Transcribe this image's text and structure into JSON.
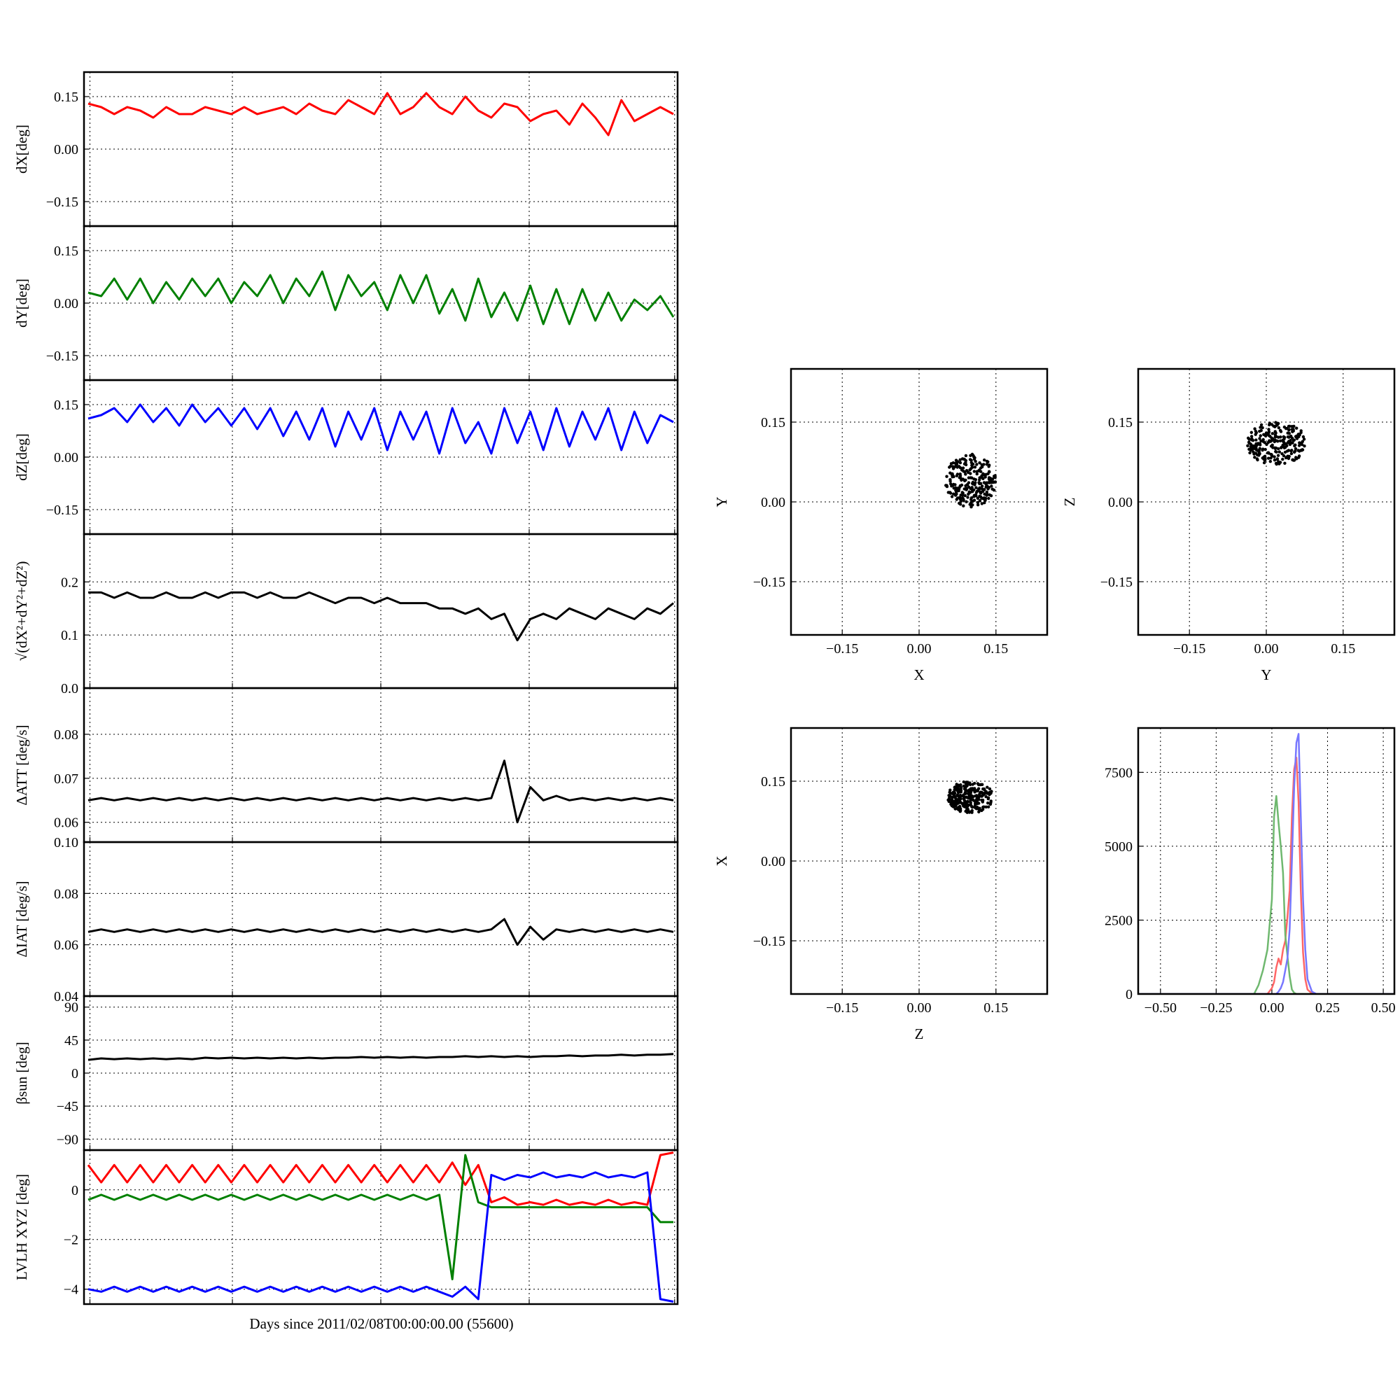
{
  "figure": {
    "xlabel": "Days since 2011/02/08T00:00:00.00 (55600)"
  },
  "chart_data": [
    {
      "id": "dX",
      "type": "line",
      "ylabel": "dX[deg]",
      "ylim": [
        -0.22,
        0.22
      ],
      "yticks": [
        "0.15",
        "0.00",
        "−0.15"
      ],
      "ytick_values": [
        0.15,
        0.0,
        -0.15
      ],
      "grid": true,
      "color": "#ff0000",
      "series": [
        {
          "values": [
            0.13,
            0.12,
            0.1,
            0.12,
            0.11,
            0.09,
            0.12,
            0.1,
            0.1,
            0.12,
            0.11,
            0.1,
            0.12,
            0.1,
            0.11,
            0.12,
            0.1,
            0.13,
            0.11,
            0.1,
            0.14,
            0.12,
            0.1,
            0.16,
            0.1,
            0.12,
            0.16,
            0.12,
            0.1,
            0.15,
            0.11,
            0.09,
            0.13,
            0.12,
            0.08,
            0.1,
            0.11,
            0.07,
            0.13,
            0.09,
            0.04,
            0.14,
            0.08,
            0.1,
            0.12,
            0.1
          ]
        }
      ]
    },
    {
      "id": "dY",
      "type": "line",
      "ylabel": "dY[deg]",
      "ylim": [
        -0.22,
        0.22
      ],
      "yticks": [
        "0.15",
        "0.00",
        "−0.15"
      ],
      "ytick_values": [
        0.15,
        0.0,
        -0.15
      ],
      "grid": true,
      "color": "#008000",
      "series": [
        {
          "values": [
            0.03,
            0.02,
            0.07,
            0.01,
            0.07,
            0.0,
            0.06,
            0.01,
            0.07,
            0.02,
            0.07,
            0.0,
            0.06,
            0.02,
            0.08,
            0.0,
            0.07,
            0.02,
            0.09,
            -0.02,
            0.08,
            0.02,
            0.06,
            -0.02,
            0.08,
            0.0,
            0.08,
            -0.03,
            0.04,
            -0.05,
            0.07,
            -0.04,
            0.03,
            -0.05,
            0.05,
            -0.06,
            0.04,
            -0.06,
            0.04,
            -0.05,
            0.03,
            -0.05,
            0.01,
            -0.02,
            0.02,
            -0.04
          ]
        }
      ]
    },
    {
      "id": "dZ",
      "type": "line",
      "ylabel": "dZ[deg]",
      "ylim": [
        -0.22,
        0.22
      ],
      "yticks": [
        "0.15",
        "0.00",
        "−0.15"
      ],
      "ytick_values": [
        0.15,
        0.0,
        -0.15
      ],
      "grid": true,
      "color": "#0000ff",
      "series": [
        {
          "values": [
            0.11,
            0.12,
            0.14,
            0.1,
            0.15,
            0.1,
            0.14,
            0.09,
            0.15,
            0.1,
            0.14,
            0.09,
            0.14,
            0.08,
            0.14,
            0.06,
            0.13,
            0.05,
            0.14,
            0.03,
            0.13,
            0.05,
            0.14,
            0.02,
            0.13,
            0.05,
            0.13,
            0.01,
            0.14,
            0.04,
            0.1,
            0.01,
            0.14,
            0.04,
            0.13,
            0.02,
            0.14,
            0.03,
            0.13,
            0.05,
            0.14,
            0.02,
            0.13,
            0.04,
            0.12,
            0.1
          ]
        }
      ]
    },
    {
      "id": "norm",
      "type": "line",
      "ylabel": "√(dX²+dY²+dZ²)",
      "ylim": [
        0.0,
        0.29
      ],
      "yticks": [
        "0.2",
        "0.1",
        "0.0"
      ],
      "ytick_values": [
        0.2,
        0.1,
        0.0
      ],
      "grid": true,
      "color": "#000000",
      "series": [
        {
          "values": [
            0.18,
            0.18,
            0.17,
            0.18,
            0.17,
            0.17,
            0.18,
            0.17,
            0.17,
            0.18,
            0.17,
            0.18,
            0.18,
            0.17,
            0.18,
            0.17,
            0.17,
            0.18,
            0.17,
            0.16,
            0.17,
            0.17,
            0.16,
            0.17,
            0.16,
            0.16,
            0.16,
            0.15,
            0.15,
            0.14,
            0.15,
            0.13,
            0.14,
            0.09,
            0.13,
            0.14,
            0.13,
            0.15,
            0.14,
            0.13,
            0.15,
            0.14,
            0.13,
            0.15,
            0.14,
            0.16
          ]
        }
      ]
    },
    {
      "id": "datt",
      "type": "line",
      "ylabel": "ΔATT [deg/s]",
      "ylim": [
        0.0555,
        0.0905
      ],
      "yticks": [
        "0.08",
        "0.07",
        "0.06"
      ],
      "ytick_values": [
        0.08,
        0.07,
        0.06
      ],
      "grid": true,
      "color": "#000000",
      "series": [
        {
          "values": [
            0.065,
            0.0655,
            0.065,
            0.0655,
            0.065,
            0.0655,
            0.065,
            0.0655,
            0.065,
            0.0655,
            0.065,
            0.0655,
            0.065,
            0.0655,
            0.065,
            0.0655,
            0.065,
            0.0655,
            0.065,
            0.0655,
            0.065,
            0.0655,
            0.065,
            0.0655,
            0.065,
            0.0655,
            0.065,
            0.0655,
            0.065,
            0.0655,
            0.065,
            0.0655,
            0.074,
            0.06,
            0.068,
            0.065,
            0.066,
            0.065,
            0.0655,
            0.065,
            0.0655,
            0.065,
            0.0655,
            0.065,
            0.0655,
            0.065
          ]
        }
      ]
    },
    {
      "id": "diat",
      "type": "line",
      "ylabel": "ΔIAT [deg/s]",
      "ylim": [
        0.04,
        0.1
      ],
      "yticks": [
        "0.10",
        "0.08",
        "0.06",
        "0.04"
      ],
      "ytick_values": [
        0.1,
        0.08,
        0.06,
        0.04
      ],
      "grid": true,
      "color": "#000000",
      "series": [
        {
          "values": [
            0.065,
            0.066,
            0.065,
            0.066,
            0.065,
            0.066,
            0.065,
            0.066,
            0.065,
            0.066,
            0.065,
            0.066,
            0.065,
            0.066,
            0.065,
            0.066,
            0.065,
            0.066,
            0.065,
            0.066,
            0.065,
            0.066,
            0.065,
            0.066,
            0.065,
            0.066,
            0.065,
            0.066,
            0.065,
            0.066,
            0.065,
            0.066,
            0.07,
            0.06,
            0.067,
            0.062,
            0.066,
            0.065,
            0.066,
            0.065,
            0.066,
            0.065,
            0.066,
            0.065,
            0.066,
            0.065
          ]
        }
      ]
    },
    {
      "id": "beta",
      "type": "line",
      "ylabel": "βsun [deg]",
      "ylim": [
        -105,
        105
      ],
      "yticks": [
        "90",
        "45",
        "0",
        "−45",
        "−90"
      ],
      "ytick_values": [
        90,
        45,
        0,
        -45,
        -90
      ],
      "grid": true,
      "color": "#000000",
      "series": [
        {
          "values": [
            18,
            20,
            19,
            20,
            19,
            20,
            19,
            20,
            19,
            21,
            20,
            21,
            20,
            21,
            20,
            21,
            20,
            21,
            20,
            21,
            21,
            22,
            21,
            22,
            21,
            22,
            21,
            22,
            22,
            23,
            22,
            23,
            22,
            23,
            22,
            23,
            23,
            24,
            23,
            24,
            24,
            25,
            24,
            25,
            25,
            26
          ]
        }
      ]
    },
    {
      "id": "lvlh",
      "type": "line",
      "ylabel": "LVLH XYZ [deg]",
      "ylim": [
        -4.6,
        1.6
      ],
      "yticks": [
        "0",
        "−2",
        "−4"
      ],
      "ytick_values": [
        0,
        -2,
        -4
      ],
      "grid": true,
      "series": [
        {
          "color": "#ff0000",
          "values": [
            1.0,
            0.3,
            1.0,
            0.3,
            1.0,
            0.3,
            1.0,
            0.3,
            1.0,
            0.3,
            1.0,
            0.3,
            1.0,
            0.3,
            1.0,
            0.3,
            1.0,
            0.3,
            1.0,
            0.3,
            1.0,
            0.3,
            1.0,
            0.3,
            1.0,
            0.3,
            1.0,
            0.3,
            1.1,
            0.2,
            1.0,
            -0.5,
            -0.3,
            -0.6,
            -0.5,
            -0.6,
            -0.4,
            -0.6,
            -0.5,
            -0.6,
            -0.4,
            -0.6,
            -0.5,
            -0.6,
            1.4,
            1.5
          ]
        },
        {
          "color": "#008000",
          "values": [
            -0.4,
            -0.2,
            -0.4,
            -0.2,
            -0.4,
            -0.2,
            -0.4,
            -0.2,
            -0.4,
            -0.2,
            -0.4,
            -0.2,
            -0.4,
            -0.2,
            -0.4,
            -0.2,
            -0.4,
            -0.2,
            -0.4,
            -0.2,
            -0.4,
            -0.2,
            -0.4,
            -0.2,
            -0.4,
            -0.2,
            -0.4,
            -0.2,
            -3.6,
            1.4,
            -0.5,
            -0.7,
            -0.7,
            -0.7,
            -0.7,
            -0.7,
            -0.7,
            -0.7,
            -0.7,
            -0.7,
            -0.7,
            -0.7,
            -0.7,
            -0.7,
            -1.3,
            -1.3
          ]
        },
        {
          "color": "#0000ff",
          "values": [
            -4.0,
            -4.1,
            -3.9,
            -4.1,
            -3.9,
            -4.1,
            -3.9,
            -4.1,
            -3.9,
            -4.1,
            -3.9,
            -4.1,
            -3.9,
            -4.1,
            -3.9,
            -4.1,
            -3.9,
            -4.1,
            -3.9,
            -4.1,
            -3.9,
            -4.1,
            -3.9,
            -4.1,
            -3.9,
            -4.1,
            -3.9,
            -4.1,
            -4.3,
            -3.9,
            -4.4,
            0.6,
            0.4,
            0.6,
            0.5,
            0.7,
            0.5,
            0.6,
            0.5,
            0.7,
            0.5,
            0.6,
            0.5,
            0.7,
            -4.4,
            -4.5
          ]
        }
      ]
    },
    {
      "id": "scatter-xy",
      "type": "scatter",
      "xlabel": "X",
      "ylabel": "Y",
      "xlim": [
        -0.25,
        0.25
      ],
      "ylim": [
        -0.25,
        0.25
      ],
      "xticks": [
        "−0.15",
        "0.00",
        "0.15"
      ],
      "xtick_values": [
        -0.15,
        0.0,
        0.15
      ],
      "yticks": [
        "0.15",
        "0.00",
        "−0.15"
      ],
      "ytick_values": [
        0.15,
        0.0,
        -0.15
      ],
      "grid": true,
      "color": "#000000",
      "center": [
        0.1,
        0.04
      ],
      "spread": [
        0.05,
        0.05
      ]
    },
    {
      "id": "scatter-yz",
      "type": "scatter",
      "xlabel": "Y",
      "ylabel": "Z",
      "xlim": [
        -0.25,
        0.25
      ],
      "ylim": [
        -0.25,
        0.25
      ],
      "xticks": [
        "−0.15",
        "0.00",
        "0.15"
      ],
      "xtick_values": [
        -0.15,
        0.0,
        0.15
      ],
      "yticks": [
        "0.15",
        "0.00",
        "−0.15"
      ],
      "ytick_values": [
        0.15,
        0.0,
        -0.15
      ],
      "grid": true,
      "color": "#000000",
      "center": [
        0.02,
        0.11
      ],
      "spread": [
        0.06,
        0.04
      ]
    },
    {
      "id": "scatter-zx",
      "type": "scatter",
      "xlabel": "Z",
      "ylabel": "X",
      "xlim": [
        -0.25,
        0.25
      ],
      "ylim": [
        -0.25,
        0.25
      ],
      "xticks": [
        "−0.15",
        "0.00",
        "0.15"
      ],
      "xtick_values": [
        -0.15,
        0.0,
        0.15
      ],
      "yticks": [
        "0.15",
        "0.00",
        "−0.15"
      ],
      "ytick_values": [
        0.15,
        0.0,
        -0.15
      ],
      "grid": true,
      "color": "#000000",
      "center": [
        0.1,
        0.12
      ],
      "spread": [
        0.045,
        0.03
      ]
    },
    {
      "id": "histogram",
      "type": "line",
      "xlim": [
        -0.6,
        0.55
      ],
      "ylim": [
        0,
        9000
      ],
      "xticks": [
        "−0.50",
        "−0.25",
        "0.00",
        "0.25",
        "0.50"
      ],
      "xtick_values": [
        -0.5,
        -0.25,
        0.0,
        0.25,
        0.5
      ],
      "yticks": [
        "7500",
        "5000",
        "2500",
        "0"
      ],
      "ytick_values": [
        7500,
        5000,
        2500,
        0
      ],
      "grid": true,
      "x": [
        -0.6,
        -0.1,
        -0.08,
        -0.06,
        -0.04,
        -0.02,
        0.0,
        0.01,
        0.02,
        0.03,
        0.04,
        0.05,
        0.06,
        0.07,
        0.08,
        0.09,
        0.1,
        0.11,
        0.12,
        0.13,
        0.14,
        0.15,
        0.16,
        0.18,
        0.2,
        0.55
      ],
      "series": [
        {
          "color": "#ff6666",
          "values": [
            0,
            0,
            0,
            0,
            0,
            0,
            200,
            400,
            900,
            1200,
            1000,
            1500,
            1800,
            2600,
            3500,
            6000,
            7600,
            8000,
            6500,
            3500,
            1400,
            500,
            150,
            20,
            0,
            0
          ]
        },
        {
          "color": "#6fb86f",
          "values": [
            0,
            0,
            0,
            300,
            800,
            1500,
            3200,
            6000,
            6700,
            5800,
            5000,
            4100,
            2000,
            1300,
            600,
            150,
            40,
            0,
            0,
            0,
            0,
            0,
            0,
            0,
            0,
            0
          ]
        },
        {
          "color": "#7777ff",
          "values": [
            0,
            0,
            0,
            0,
            0,
            0,
            0,
            0,
            0,
            80,
            200,
            400,
            800,
            1200,
            2200,
            4500,
            7000,
            8500,
            8800,
            6000,
            3200,
            1500,
            500,
            80,
            0,
            0
          ]
        }
      ]
    }
  ]
}
